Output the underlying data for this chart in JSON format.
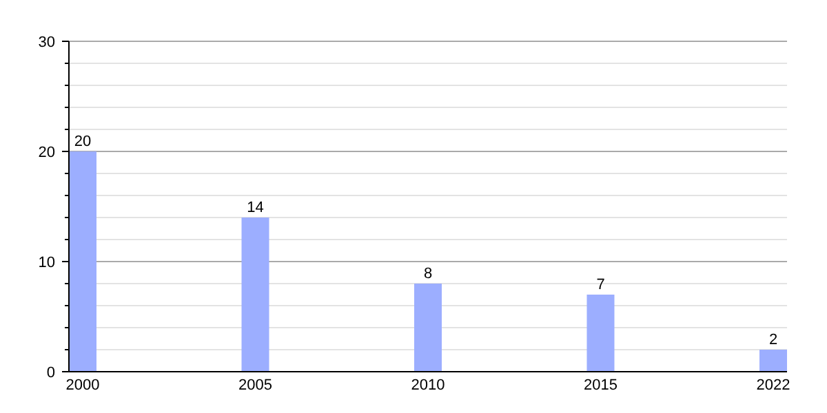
{
  "chart_data": {
    "type": "bar",
    "categories": [
      "2000",
      "2005",
      "2010",
      "2015",
      "2022"
    ],
    "values": [
      20,
      14,
      8,
      7,
      2
    ],
    "color": "#9caeff",
    "ylim": [
      0,
      30
    ],
    "yticks": [
      0,
      {
        "value": 2,
        "label": null
      },
      {
        "value": 4,
        "label": null
      },
      {
        "value": 6,
        "label": null
      },
      {
        "value": 8,
        "label": null
      },
      10,
      {
        "value": 12,
        "label": null
      },
      {
        "value": 14,
        "label": null
      },
      {
        "value": 16,
        "label": null
      },
      {
        "value": 18,
        "label": null
      },
      20,
      {
        "value": 22,
        "label": null
      },
      {
        "value": 24,
        "label": null
      },
      {
        "value": 26,
        "label": null
      },
      {
        "value": 28,
        "label": null
      },
      30
    ],
    "grid": true,
    "data_labels": true
  }
}
